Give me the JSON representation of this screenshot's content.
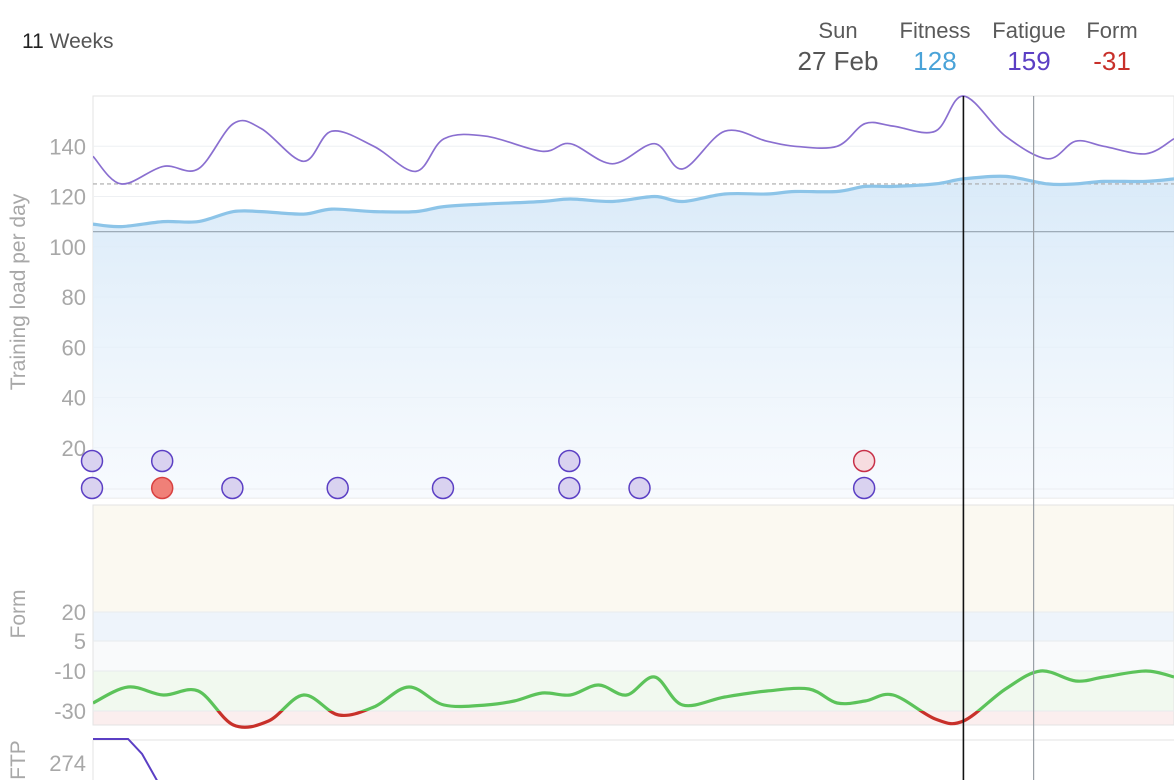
{
  "header": {
    "range_value": "11",
    "range_unit": "Weeks",
    "day_name": "Sun",
    "date": "27 Feb",
    "fitness_label": "Fitness",
    "fitness_value": "128",
    "fatigue_label": "Fatigue",
    "fatigue_value": "159",
    "form_label": "Form",
    "form_value": "-31"
  },
  "colors": {
    "fitness": "#4aa3d8",
    "fitness_line": "#8cc4e8",
    "fatigue": "#5b3fc4",
    "fatigue_line": "#8a6fd0",
    "form_positive": "#5cc35a",
    "form_negative": "#c8302a",
    "dot_fill": "#d9d2f0",
    "dot_stroke": "#5b3fc4",
    "dot_red_fill": "#f08078",
    "dot_red_stroke": "#d84040",
    "dot_pink_fill": "#f7dce0",
    "dot_pink_stroke": "#c83048",
    "zone_green": "#f1f9ef",
    "zone_red": "#fbeeee",
    "zone_blue": "#eef4fb",
    "zone_cream": "#fbf9f1"
  },
  "chart_data": [
    {
      "type": "line",
      "name": "training-load",
      "ylabel": "Training load per day",
      "ylim": [
        0,
        160
      ],
      "yticks": [
        20,
        40,
        60,
        80,
        100,
        120,
        140
      ],
      "xlim": [
        0,
        77
      ],
      "grid": true,
      "series": [
        {
          "key": "fatigue",
          "x": [
            0,
            2,
            5,
            7.5,
            10,
            12,
            15,
            17,
            20,
            23,
            25,
            28,
            32,
            34,
            37,
            40,
            42,
            45,
            48,
            50,
            53,
            55,
            57,
            60,
            62,
            65,
            68,
            70,
            72,
            75,
            77
          ],
          "values": [
            136,
            125,
            132,
            131,
            149,
            147,
            134,
            146,
            140,
            130,
            143,
            144,
            138,
            141,
            133,
            141,
            131,
            146,
            142,
            140,
            140,
            149,
            148,
            146,
            160,
            144,
            135,
            142,
            140,
            137,
            143
          ]
        },
        {
          "key": "fitness",
          "x": [
            0,
            2,
            5,
            7.5,
            10,
            12,
            15,
            17,
            20,
            23,
            25,
            28,
            32,
            34,
            37,
            40,
            42,
            45,
            48,
            50,
            53,
            55,
            57,
            60,
            62,
            65,
            68,
            70,
            72,
            75,
            77
          ],
          "values": [
            109,
            108,
            110,
            110,
            114,
            114,
            113,
            115,
            114,
            114,
            116,
            117,
            118,
            119,
            118,
            120,
            118,
            121,
            121,
            122,
            122,
            124,
            124,
            125,
            127,
            128,
            125,
            125,
            126,
            126,
            127
          ]
        }
      ],
      "reference_lines": [
        {
          "value": 125,
          "style": "dashed"
        },
        {
          "value": 106,
          "style": "solid"
        }
      ],
      "activity_markers": {
        "top_row": [
          {
            "x": 0,
            "kind": "normal"
          },
          {
            "x": 5,
            "kind": "normal"
          },
          {
            "x": 34,
            "kind": "normal"
          },
          {
            "x": 55,
            "kind": "pink"
          }
        ],
        "bottom_row": [
          {
            "x": 0,
            "kind": "normal"
          },
          {
            "x": 5,
            "kind": "red"
          },
          {
            "x": 10,
            "kind": "normal"
          },
          {
            "x": 17.5,
            "kind": "normal"
          },
          {
            "x": 25,
            "kind": "normal"
          },
          {
            "x": 34,
            "kind": "normal"
          },
          {
            "x": 39,
            "kind": "normal"
          },
          {
            "x": 55,
            "kind": "normal"
          }
        ]
      }
    },
    {
      "type": "line",
      "name": "form",
      "ylabel": "Form",
      "yticks": [
        20,
        5,
        -10,
        -30
      ],
      "xlim": [
        0,
        77
      ],
      "series": [
        {
          "key": "form",
          "x": [
            0,
            2.5,
            5,
            7.5,
            10,
            12.5,
            15,
            17.5,
            20,
            22.5,
            25,
            28,
            30,
            32,
            34,
            36,
            38,
            40,
            42,
            45,
            48,
            51,
            53,
            55,
            57,
            60,
            62,
            65,
            67.5,
            70,
            72,
            75,
            77
          ],
          "values": [
            -26,
            -18,
            -22,
            -20,
            -37,
            -35,
            -22,
            -32,
            -28,
            -18,
            -27,
            -27,
            -25,
            -21,
            -22,
            -17,
            -22,
            -13,
            -27,
            -23,
            -20,
            -19,
            -26,
            -25,
            -22,
            -34,
            -35,
            -19,
            -10,
            -15,
            -13,
            -10,
            -13
          ]
        }
      ]
    },
    {
      "type": "line",
      "name": "ftp",
      "ylabel": "FTP",
      "yticks": [
        274
      ],
      "xlim": [
        0,
        77
      ],
      "series": [
        {
          "key": "ftp",
          "x": [
            0,
            2.5,
            3.5,
            5
          ],
          "values": [
            290,
            290,
            280,
            255
          ]
        }
      ]
    }
  ],
  "cursor": {
    "x": 62,
    "secondary_x": 67
  }
}
